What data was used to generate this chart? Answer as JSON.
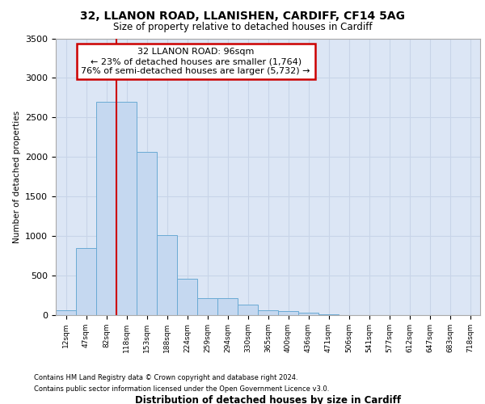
{
  "title1": "32, LLANON ROAD, LLANISHEN, CARDIFF, CF14 5AG",
  "title2": "Size of property relative to detached houses in Cardiff",
  "xlabel": "Distribution of detached houses by size in Cardiff",
  "ylabel": "Number of detached properties",
  "bar_labels": [
    "12sqm",
    "47sqm",
    "82sqm",
    "118sqm",
    "153sqm",
    "188sqm",
    "224sqm",
    "259sqm",
    "294sqm",
    "330sqm",
    "365sqm",
    "400sqm",
    "436sqm",
    "471sqm",
    "506sqm",
    "541sqm",
    "577sqm",
    "612sqm",
    "647sqm",
    "683sqm",
    "718sqm"
  ],
  "bar_values": [
    60,
    850,
    2700,
    2700,
    2060,
    1010,
    460,
    215,
    215,
    130,
    65,
    55,
    35,
    15,
    5,
    0,
    0,
    0,
    0,
    0,
    0
  ],
  "bar_color": "#c5d8f0",
  "bar_edge_color": "#6aaad4",
  "grid_color": "#c8d4e8",
  "background_color": "#dce6f5",
  "vline_color": "#cc0000",
  "annotation_text": "32 LLANON ROAD: 96sqm\n← 23% of detached houses are smaller (1,764)\n76% of semi-detached houses are larger (5,732) →",
  "annotation_box_color": "#cc0000",
  "ylim": [
    0,
    3500
  ],
  "yticks": [
    0,
    500,
    1000,
    1500,
    2000,
    2500,
    3000,
    3500
  ],
  "footnote1": "Contains HM Land Registry data © Crown copyright and database right 2024.",
  "footnote2": "Contains public sector information licensed under the Open Government Licence v3.0."
}
